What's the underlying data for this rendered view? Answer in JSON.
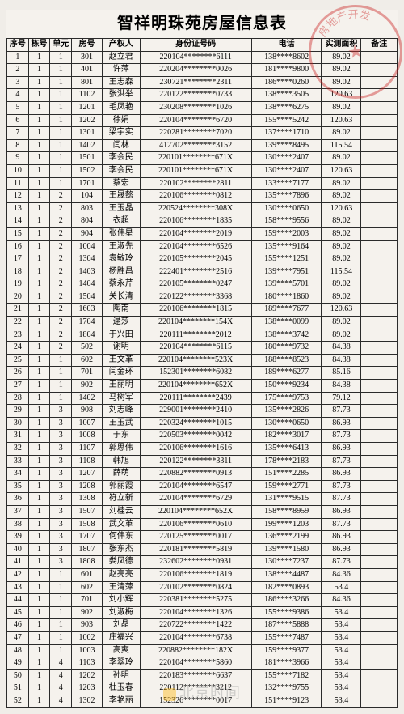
{
  "title": "智祥明珠苑房屋信息表",
  "stamp_text": "房地产开发",
  "watermark": "北京时间",
  "columns": [
    "序号",
    "栋号",
    "单元",
    "房号",
    "产权人",
    "身份证号码",
    "电话",
    "实测面积",
    "备注"
  ],
  "rows": [
    {
      "seq": "1",
      "bldg": "1",
      "unit": "1",
      "room": "301",
      "owner": "赵立君",
      "id": "220104********6111",
      "phone": "138****8602",
      "area": "89.02",
      "note": ""
    },
    {
      "seq": "2",
      "bldg": "1",
      "unit": "1",
      "room": "401",
      "owner": "许萍",
      "id": "220204********0026",
      "phone": "181****9800",
      "area": "89.02",
      "note": ""
    },
    {
      "seq": "3",
      "bldg": "1",
      "unit": "1",
      "room": "801",
      "owner": "王志森",
      "id": "230721********2311",
      "phone": "186****0260",
      "area": "89.02",
      "note": ""
    },
    {
      "seq": "4",
      "bldg": "1",
      "unit": "1",
      "room": "1102",
      "owner": "张洪举",
      "id": "220122********0733",
      "phone": "138****3505",
      "area": "120.63",
      "note": ""
    },
    {
      "seq": "5",
      "bldg": "1",
      "unit": "1",
      "room": "1201",
      "owner": "毛凤艳",
      "id": "230208********1026",
      "phone": "138****6275",
      "area": "89.02",
      "note": ""
    },
    {
      "seq": "6",
      "bldg": "1",
      "unit": "1",
      "room": "1202",
      "owner": "徐娟",
      "id": "220104********6720",
      "phone": "155****5242",
      "area": "120.63",
      "note": ""
    },
    {
      "seq": "7",
      "bldg": "1",
      "unit": "1",
      "room": "1301",
      "owner": "梁宇实",
      "id": "220281********7020",
      "phone": "137****1710",
      "area": "89.02",
      "note": ""
    },
    {
      "seq": "8",
      "bldg": "1",
      "unit": "1",
      "room": "1402",
      "owner": "闫林",
      "id": "412702********3152",
      "phone": "139****8495",
      "area": "115.54",
      "note": ""
    },
    {
      "seq": "9",
      "bldg": "1",
      "unit": "1",
      "room": "1501",
      "owner": "李会民",
      "id": "220101********671X",
      "phone": "130****2407",
      "area": "89.02",
      "note": ""
    },
    {
      "seq": "10",
      "bldg": "1",
      "unit": "1",
      "room": "1502",
      "owner": "李会民",
      "id": "220101********671X",
      "phone": "130****2407",
      "area": "120.63",
      "note": ""
    },
    {
      "seq": "11",
      "bldg": "1",
      "unit": "1",
      "room": "1701",
      "owner": "蔡宏",
      "id": "220102********2811",
      "phone": "133****7177",
      "area": "89.02",
      "note": ""
    },
    {
      "seq": "12",
      "bldg": "1",
      "unit": "2",
      "room": "104",
      "owner": "王晟懿",
      "id": "220106********0812",
      "phone": "135****7896",
      "area": "89.02",
      "note": ""
    },
    {
      "seq": "13",
      "bldg": "1",
      "unit": "2",
      "room": "803",
      "owner": "王玉晶",
      "id": "220524********308X",
      "phone": "130****0650",
      "area": "120.63",
      "note": ""
    },
    {
      "seq": "14",
      "bldg": "1",
      "unit": "2",
      "room": "804",
      "owner": "衣超",
      "id": "220106********1835",
      "phone": "158****9556",
      "area": "89.02",
      "note": ""
    },
    {
      "seq": "15",
      "bldg": "1",
      "unit": "2",
      "room": "904",
      "owner": "张伟星",
      "id": "220104********2019",
      "phone": "159****2003",
      "area": "89.02",
      "note": ""
    },
    {
      "seq": "16",
      "bldg": "1",
      "unit": "2",
      "room": "1004",
      "owner": "王淑先",
      "id": "220104********6526",
      "phone": "135****9164",
      "area": "89.02",
      "note": ""
    },
    {
      "seq": "17",
      "bldg": "1",
      "unit": "2",
      "room": "1304",
      "owner": "袁敏玲",
      "id": "220105********2045",
      "phone": "155****1251",
      "area": "89.02",
      "note": ""
    },
    {
      "seq": "18",
      "bldg": "1",
      "unit": "2",
      "room": "1403",
      "owner": "杨胜昌",
      "id": "222401********2516",
      "phone": "139****7951",
      "area": "115.54",
      "note": ""
    },
    {
      "seq": "19",
      "bldg": "1",
      "unit": "2",
      "room": "1404",
      "owner": "蔡永芹",
      "id": "220105********0247",
      "phone": "139****5701",
      "area": "89.02",
      "note": ""
    },
    {
      "seq": "20",
      "bldg": "1",
      "unit": "2",
      "room": "1504",
      "owner": "关长清",
      "id": "220122********3368",
      "phone": "180****1860",
      "area": "89.02",
      "note": ""
    },
    {
      "seq": "21",
      "bldg": "1",
      "unit": "2",
      "room": "1603",
      "owner": "陶南",
      "id": "220106********1815",
      "phone": "189****7677",
      "area": "120.63",
      "note": ""
    },
    {
      "seq": "22",
      "bldg": "1",
      "unit": "2",
      "room": "1704",
      "owner": "逯莎",
      "id": "220104********154X",
      "phone": "138****0099",
      "area": "89.02",
      "note": ""
    },
    {
      "seq": "23",
      "bldg": "1",
      "unit": "2",
      "room": "1804",
      "owner": "于兴田",
      "id": "220111********2012",
      "phone": "138****3742",
      "area": "89.02",
      "note": ""
    },
    {
      "seq": "24",
      "bldg": "1",
      "unit": "2",
      "room": "502",
      "owner": "谢明",
      "id": "220104********6115",
      "phone": "180****9732",
      "area": "84.38",
      "note": ""
    },
    {
      "seq": "25",
      "bldg": "1",
      "unit": "1",
      "room": "602",
      "owner": "王文革",
      "id": "220104********523X",
      "phone": "188****8523",
      "area": "84.38",
      "note": ""
    },
    {
      "seq": "26",
      "bldg": "1",
      "unit": "1",
      "room": "701",
      "owner": "闫金环",
      "id": "152301********6082",
      "phone": "189****6277",
      "area": "85.16",
      "note": ""
    },
    {
      "seq": "27",
      "bldg": "1",
      "unit": "1",
      "room": "902",
      "owner": "王丽明",
      "id": "220104********652X",
      "phone": "150****9234",
      "area": "84.38",
      "note": ""
    },
    {
      "seq": "28",
      "bldg": "1",
      "unit": "1",
      "room": "1402",
      "owner": "马树军",
      "id": "220111********2439",
      "phone": "175****9753",
      "area": "79.12",
      "note": ""
    },
    {
      "seq": "29",
      "bldg": "1",
      "unit": "3",
      "room": "908",
      "owner": "刘志峰",
      "id": "229001********2410",
      "phone": "135****2826",
      "area": "87.73",
      "note": ""
    },
    {
      "seq": "30",
      "bldg": "1",
      "unit": "3",
      "room": "1007",
      "owner": "王玉武",
      "id": "220324********1015",
      "phone": "130****0650",
      "area": "86.93",
      "note": ""
    },
    {
      "seq": "31",
      "bldg": "1",
      "unit": "3",
      "room": "1008",
      "owner": "于东",
      "id": "220503********0042",
      "phone": "182****3017",
      "area": "87.73",
      "note": ""
    },
    {
      "seq": "32",
      "bldg": "1",
      "unit": "3",
      "room": "1107",
      "owner": "郭思伟",
      "id": "220106********1616",
      "phone": "135****6413",
      "area": "86.93",
      "note": ""
    },
    {
      "seq": "33",
      "bldg": "1",
      "unit": "3",
      "room": "1108",
      "owner": "韩旭",
      "id": "220122********3311",
      "phone": "178****2183",
      "area": "87.73",
      "note": ""
    },
    {
      "seq": "34",
      "bldg": "1",
      "unit": "3",
      "room": "1207",
      "owner": "薛萌",
      "id": "220882********0913",
      "phone": "151****2285",
      "area": "86.93",
      "note": ""
    },
    {
      "seq": "35",
      "bldg": "1",
      "unit": "3",
      "room": "1208",
      "owner": "郭丽霞",
      "id": "220104********6547",
      "phone": "159****2771",
      "area": "87.73",
      "note": ""
    },
    {
      "seq": "36",
      "bldg": "1",
      "unit": "3",
      "room": "1308",
      "owner": "符立新",
      "id": "220104********6729",
      "phone": "131****9515",
      "area": "87.73",
      "note": ""
    },
    {
      "seq": "37",
      "bldg": "1",
      "unit": "3",
      "room": "1507",
      "owner": "刘桂云",
      "id": "220104********652X",
      "phone": "158****8959",
      "area": "86.93",
      "note": ""
    },
    {
      "seq": "38",
      "bldg": "1",
      "unit": "3",
      "room": "1508",
      "owner": "武文革",
      "id": "220106********0610",
      "phone": "199****1203",
      "area": "87.73",
      "note": ""
    },
    {
      "seq": "39",
      "bldg": "1",
      "unit": "3",
      "room": "1707",
      "owner": "何伟东",
      "id": "220125********0017",
      "phone": "136****2199",
      "area": "86.93",
      "note": ""
    },
    {
      "seq": "40",
      "bldg": "1",
      "unit": "3",
      "room": "1807",
      "owner": "张东杰",
      "id": "220181********5819",
      "phone": "139****1580",
      "area": "86.93",
      "note": ""
    },
    {
      "seq": "41",
      "bldg": "1",
      "unit": "3",
      "room": "1808",
      "owner": "娄凤德",
      "id": "232602********0931",
      "phone": "130****7237",
      "area": "87.73",
      "note": ""
    },
    {
      "seq": "42",
      "bldg": "1",
      "unit": "1",
      "room": "601",
      "owner": "赵亮亮",
      "id": "220106********1819",
      "phone": "138****4487",
      "area": "84.36",
      "note": ""
    },
    {
      "seq": "43",
      "bldg": "1",
      "unit": "1",
      "room": "602",
      "owner": "王清萍",
      "id": "220102********0824",
      "phone": "182****0893",
      "area": "53.4",
      "note": ""
    },
    {
      "seq": "44",
      "bldg": "1",
      "unit": "1",
      "room": "701",
      "owner": "刘小辉",
      "id": "220381********5275",
      "phone": "186****3266",
      "area": "84.36",
      "note": ""
    },
    {
      "seq": "45",
      "bldg": "1",
      "unit": "1",
      "room": "902",
      "owner": "刘淑梅",
      "id": "220104********1326",
      "phone": "155****9386",
      "area": "53.4",
      "note": ""
    },
    {
      "seq": "46",
      "bldg": "1",
      "unit": "1",
      "room": "903",
      "owner": "刘晶",
      "id": "220722********1422",
      "phone": "187****5888",
      "area": "53.4",
      "note": ""
    },
    {
      "seq": "47",
      "bldg": "1",
      "unit": "1",
      "room": "1002",
      "owner": "庄福兴",
      "id": "220104********6738",
      "phone": "155****7487",
      "area": "53.4",
      "note": ""
    },
    {
      "seq": "48",
      "bldg": "1",
      "unit": "1",
      "room": "1003",
      "owner": "高爽",
      "id": "220882********182X",
      "phone": "159****9377",
      "area": "53.4",
      "note": ""
    },
    {
      "seq": "49",
      "bldg": "1",
      "unit": "4",
      "room": "1103",
      "owner": "李翠玲",
      "id": "220104********5860",
      "phone": "181****3966",
      "area": "53.4",
      "note": ""
    },
    {
      "seq": "50",
      "bldg": "1",
      "unit": "4",
      "room": "1202",
      "owner": "孙明",
      "id": "220183********6637",
      "phone": "155****7182",
      "area": "53.4",
      "note": ""
    },
    {
      "seq": "51",
      "bldg": "1",
      "unit": "4",
      "room": "1203",
      "owner": "杜玉春",
      "id": "220112********3212",
      "phone": "132****9755",
      "area": "53.4",
      "note": ""
    },
    {
      "seq": "52",
      "bldg": "1",
      "unit": "4",
      "room": "1302",
      "owner": "李艳丽",
      "id": "152326********0017",
      "phone": "151****9123",
      "area": "53.4",
      "note": ""
    }
  ]
}
